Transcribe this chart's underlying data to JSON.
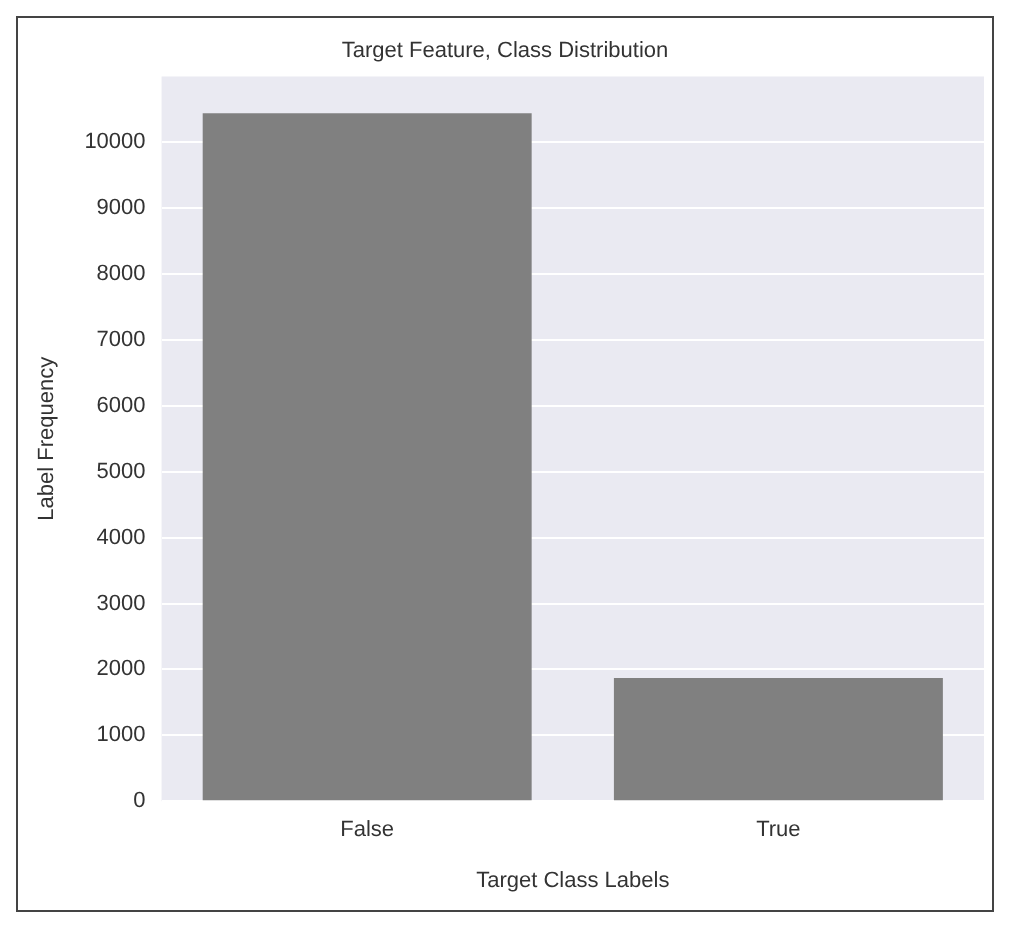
{
  "chart_data": {
    "type": "bar",
    "title": "Target Feature, Class Distribution",
    "xlabel": "Target Class Labels",
    "ylabel": "Label Frequency",
    "categories": [
      "False",
      "True"
    ],
    "values": [
      10440,
      1870
    ],
    "color": "#808080",
    "ylim": [
      0,
      11000
    ],
    "yticks": [
      0,
      1000,
      2000,
      3000,
      4000,
      5000,
      6000,
      7000,
      8000,
      9000,
      10000
    ],
    "grid": "y"
  }
}
